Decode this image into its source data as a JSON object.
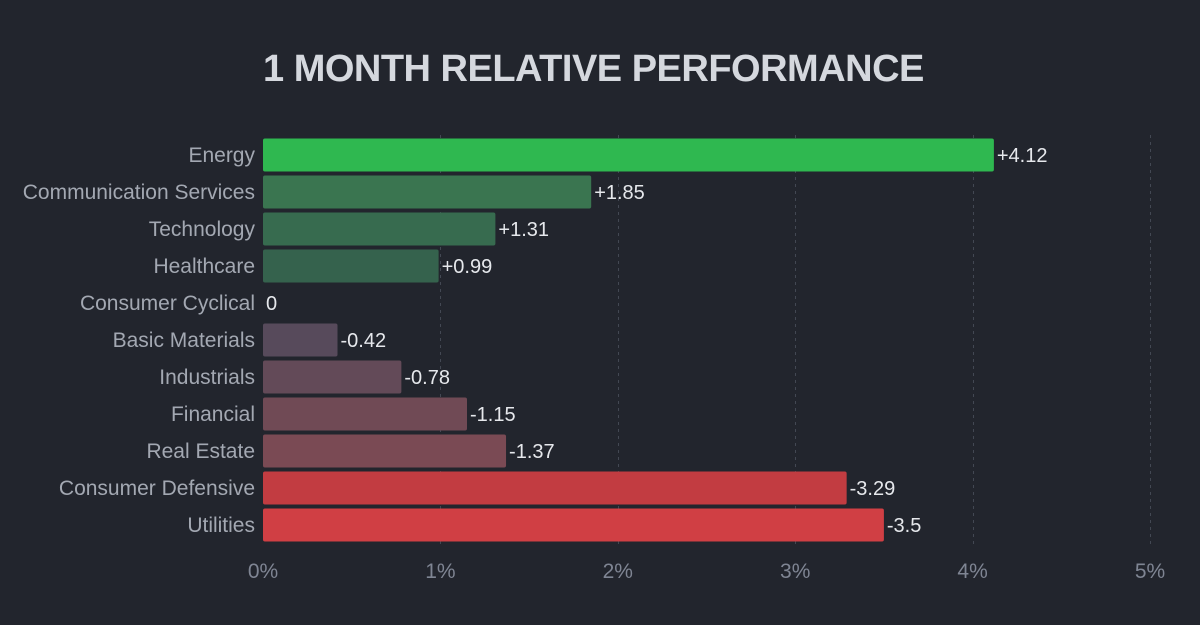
{
  "chart_data": {
    "type": "bar",
    "orientation": "horizontal",
    "title": "1 MONTH RELATIVE PERFORMANCE",
    "categories": [
      "Energy",
      "Communication Services",
      "Technology",
      "Healthcare",
      "Consumer Cyclical",
      "Basic Materials",
      "Industrials",
      "Financial",
      "Real Estate",
      "Consumer Defensive",
      "Utilities"
    ],
    "values": [
      4.12,
      1.85,
      1.31,
      0.99,
      0,
      -0.42,
      -0.78,
      -1.15,
      -1.37,
      -3.29,
      -3.5
    ],
    "value_labels": [
      "+4.12",
      "+1.85",
      "+1.31",
      "+0.99",
      "0",
      "-0.42",
      "-0.78",
      "-1.15",
      "-1.37",
      "-3.29",
      "-3.5"
    ],
    "bar_magnitude": "absolute",
    "bar_colors": [
      "#2fb850",
      "#3a7550",
      "#376b4f",
      "#35624d",
      "#2c3039",
      "#574a5b",
      "#634a58",
      "#704a55",
      "#7a4a54",
      "#c23c41",
      "#d03f44"
    ],
    "x_ticks": [
      "0%",
      "1%",
      "2%",
      "3%",
      "4%",
      "5%"
    ],
    "xlim": [
      0,
      5
    ],
    "xlabel": "",
    "ylabel": "",
    "grid": "vertical-dashed",
    "background": "#22252d"
  }
}
